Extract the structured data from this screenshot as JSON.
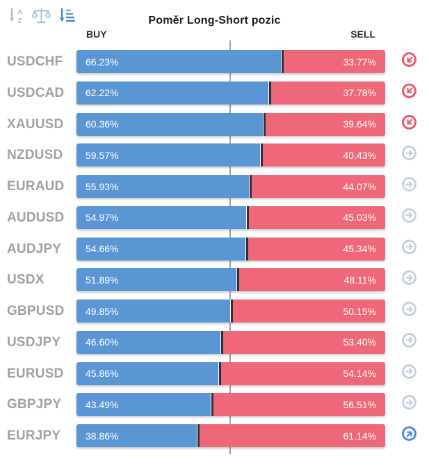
{
  "header": {
    "title": "Poměr Long-Short pozic",
    "buy_label": "BUY",
    "sell_label": "SELL"
  },
  "toolbar": {
    "icons": [
      {
        "id": "sort-alphabetical-icon",
        "state": "inactive"
      },
      {
        "id": "compare-scale-icon",
        "state": "inactive"
      },
      {
        "id": "sort-by-value-icon",
        "state": "active"
      }
    ]
  },
  "colors": {
    "buy_bar": "#5a96d4",
    "sell_bar": "#ee6879",
    "junction_line": "#2f2f3a",
    "center_line": "#a5a5a5",
    "pair_label": "#a0a1a3",
    "signal_sell": "#e85a69",
    "signal_neutral": "#c7d1dd",
    "signal_buy": "#4b8ed2",
    "icon_light_blue": "#a7c2e0",
    "icon_active_blue": "#4f87c7"
  },
  "rows": [
    {
      "pair": "USDCHF",
      "buy": 66.23,
      "sell": 33.77,
      "buy_text": "66.23%",
      "sell_text": "33.77%",
      "signal": "sell"
    },
    {
      "pair": "USDCAD",
      "buy": 62.22,
      "sell": 37.78,
      "buy_text": "62.22%",
      "sell_text": "37.78%",
      "signal": "sell"
    },
    {
      "pair": "XAUUSD",
      "buy": 60.36,
      "sell": 39.64,
      "buy_text": "60.36%",
      "sell_text": "39.64%",
      "signal": "sell"
    },
    {
      "pair": "NZDUSD",
      "buy": 59.57,
      "sell": 40.43,
      "buy_text": "59.57%",
      "sell_text": "40.43%",
      "signal": "neutral"
    },
    {
      "pair": "EURAUD",
      "buy": 55.93,
      "sell": 44.07,
      "buy_text": "55.93%",
      "sell_text": "44.07%",
      "signal": "neutral"
    },
    {
      "pair": "AUDUSD",
      "buy": 54.97,
      "sell": 45.03,
      "buy_text": "54.97%",
      "sell_text": "45.03%",
      "signal": "neutral"
    },
    {
      "pair": "AUDJPY",
      "buy": 54.66,
      "sell": 45.34,
      "buy_text": "54.66%",
      "sell_text": "45.34%",
      "signal": "neutral"
    },
    {
      "pair": "USDX",
      "buy": 51.89,
      "sell": 48.11,
      "buy_text": "51.89%",
      "sell_text": "48.11%",
      "signal": "neutral"
    },
    {
      "pair": "GBPUSD",
      "buy": 49.85,
      "sell": 50.15,
      "buy_text": "49.85%",
      "sell_text": "50.15%",
      "signal": "neutral"
    },
    {
      "pair": "USDJPY",
      "buy": 46.6,
      "sell": 53.4,
      "buy_text": "46.60%",
      "sell_text": "53.40%",
      "signal": "neutral"
    },
    {
      "pair": "EURUSD",
      "buy": 45.86,
      "sell": 54.14,
      "buy_text": "45.86%",
      "sell_text": "54.14%",
      "signal": "neutral"
    },
    {
      "pair": "GBPJPY",
      "buy": 43.49,
      "sell": 56.51,
      "buy_text": "43.49%",
      "sell_text": "56.51%",
      "signal": "neutral"
    },
    {
      "pair": "EURJPY",
      "buy": 38.86,
      "sell": 61.14,
      "buy_text": "38.86%",
      "sell_text": "61.14%",
      "signal": "buy"
    }
  ],
  "chart_data": {
    "type": "bar",
    "orientation": "horizontal-stacked",
    "title": "Poměr Long-Short pozic",
    "categories": [
      "USDCHF",
      "USDCAD",
      "XAUUSD",
      "NZDUSD",
      "EURAUD",
      "AUDUSD",
      "AUDJPY",
      "USDX",
      "GBPUSD",
      "USDJPY",
      "EURUSD",
      "GBPJPY",
      "EURJPY"
    ],
    "series": [
      {
        "name": "BUY",
        "values": [
          66.23,
          62.22,
          60.36,
          59.57,
          55.93,
          54.97,
          54.66,
          51.89,
          49.85,
          46.6,
          45.86,
          43.49,
          38.86
        ]
      },
      {
        "name": "SELL",
        "values": [
          33.77,
          37.78,
          39.64,
          40.43,
          44.07,
          45.03,
          45.34,
          48.11,
          50.15,
          53.4,
          54.14,
          56.51,
          61.14
        ]
      }
    ],
    "xlim": [
      0,
      100
    ],
    "value_format": "percent",
    "grid": false,
    "legend_position": "top (BUY left, SELL right)",
    "center_reference_line": 50
  }
}
